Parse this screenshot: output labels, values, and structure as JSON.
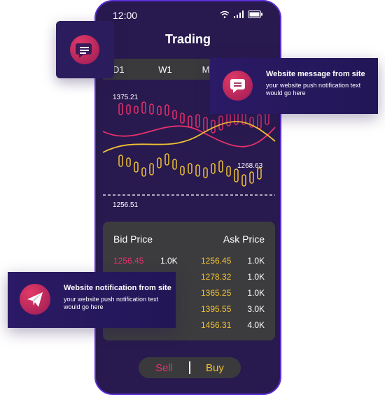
{
  "status": {
    "time": "12:00"
  },
  "page": {
    "title": "Trading"
  },
  "tabs": [
    "D1",
    "W1",
    "M"
  ],
  "chart": {
    "high_label": "1375.21",
    "mid_label": "1268.63",
    "low_label": "1256.51",
    "colors": {
      "bullish": "#e8306a",
      "bearish": "#f1c232"
    }
  },
  "order_book": {
    "bid_header": "Bid Price",
    "ask_header": "Ask Price",
    "rows": [
      {
        "bid": "1256.45",
        "bid_qty": "1.0K",
        "ask": "1256.45",
        "ask_qty": "1.0K"
      },
      {
        "bid": "",
        "bid_qty": "",
        "ask": "1278.32",
        "ask_qty": "1.0K"
      },
      {
        "bid": "",
        "bid_qty": "",
        "ask": "1365.25",
        "ask_qty": "1.0K"
      },
      {
        "bid": "",
        "bid_qty": "",
        "ask": "1395.55",
        "ask_qty": "3.0K"
      },
      {
        "bid": "",
        "bid_qty": "",
        "ask": "1456.31",
        "ask_qty": "4.0K"
      }
    ]
  },
  "actions": {
    "sell": "Sell",
    "buy": "Buy"
  },
  "notifications": {
    "message": {
      "title": "Website message from site",
      "body": "your website push notification text would go here",
      "icon": "chat-bubble-icon"
    },
    "notification": {
      "title": "Website notification from site",
      "body": "your website push notification text would go here",
      "icon": "paper-plane-icon"
    }
  }
}
